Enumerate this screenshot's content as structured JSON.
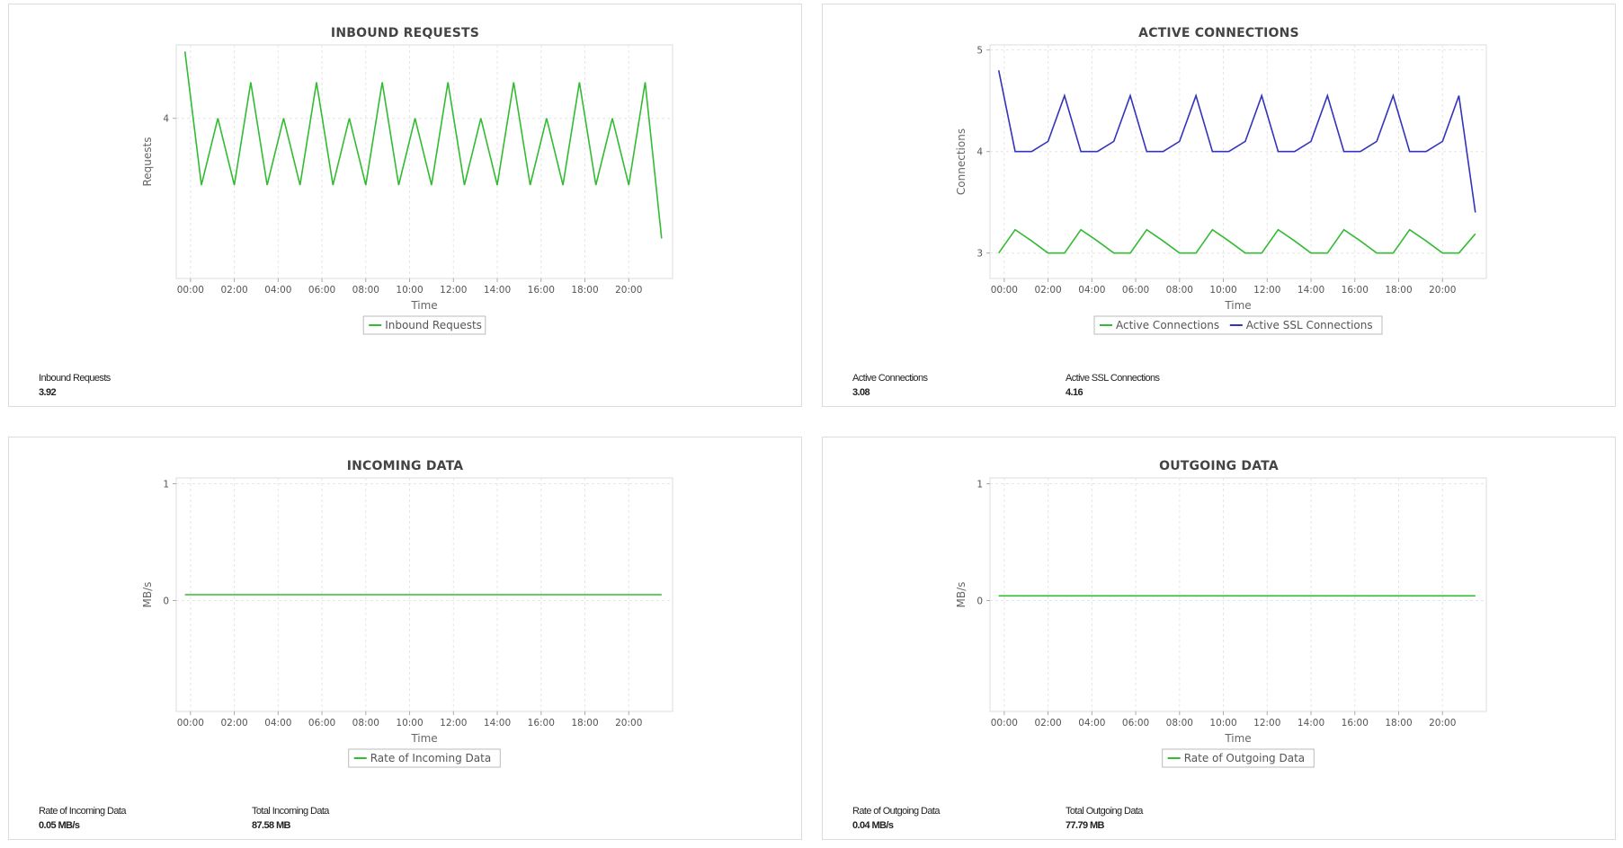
{
  "panels": [
    {
      "id": "inbound-requests",
      "title": "INBOUND REQUESTS",
      "stats": [
        {
          "label": "Inbound Requests",
          "value": "3.92"
        }
      ]
    },
    {
      "id": "active-connections",
      "title": "ACTIVE CONNECTIONS",
      "stats": [
        {
          "label": "Active Connections",
          "value": "3.08"
        },
        {
          "label": "Active SSL Connections",
          "value": "4.16"
        }
      ]
    },
    {
      "id": "incoming-data",
      "title": "INCOMING DATA",
      "stats": [
        {
          "label": "Rate of Incoming Data",
          "value": "0.05 MB/s"
        },
        {
          "label": "Total Incoming Data",
          "value": "87.58 MB"
        }
      ]
    },
    {
      "id": "outgoing-data",
      "title": "OUTGOING DATA",
      "stats": [
        {
          "label": "Rate of Outgoing Data",
          "value": "0.04 MB/s"
        },
        {
          "label": "Total Outgoing Data",
          "value": "77.79 MB"
        }
      ]
    }
  ],
  "chart_data": [
    {
      "type": "line",
      "title": "INBOUND REQUESTS",
      "xlabel": "Time",
      "ylabel": "Requests",
      "x_ticks": [
        "00:00",
        "02:00",
        "04:00",
        "06:00",
        "08:00",
        "10:00",
        "12:00",
        "14:00",
        "16:00",
        "18:00",
        "20:00"
      ],
      "y_ticks": [
        4
      ],
      "ylim": [
        2.8,
        4.55
      ],
      "x_hours": [
        -0.25,
        0.5,
        1.25,
        2.0,
        2.75,
        3.5,
        4.25,
        5.0,
        5.75,
        6.5,
        7.25,
        8.0,
        8.75,
        9.5,
        10.25,
        11.0,
        11.75,
        12.5,
        13.25,
        14.0,
        14.75,
        15.5,
        16.25,
        17.0,
        17.75,
        18.5,
        19.25,
        20.0,
        20.75,
        21.5
      ],
      "x_range": [
        -0.65,
        22.0
      ],
      "legend": "bottom",
      "grid": true,
      "series": [
        {
          "name": "Inbound Requests",
          "color": "#33bb33",
          "values": [
            4.5,
            3.5,
            4.0,
            3.5,
            4.27,
            3.5,
            4.0,
            3.5,
            4.27,
            3.5,
            4.0,
            3.5,
            4.27,
            3.5,
            4.0,
            3.5,
            4.27,
            3.5,
            4.0,
            3.5,
            4.27,
            3.5,
            4.0,
            3.5,
            4.27,
            3.5,
            4.0,
            3.5,
            4.27,
            3.1
          ]
        }
      ]
    },
    {
      "type": "line",
      "title": "ACTIVE CONNECTIONS",
      "xlabel": "Time",
      "ylabel": "Connections",
      "x_ticks": [
        "00:00",
        "02:00",
        "04:00",
        "06:00",
        "08:00",
        "10:00",
        "12:00",
        "14:00",
        "16:00",
        "18:00",
        "20:00"
      ],
      "y_ticks": [
        3,
        4,
        5
      ],
      "ylim": [
        2.75,
        5.05
      ],
      "x_hours": [
        -0.25,
        0.5,
        1.25,
        2.0,
        2.75,
        3.5,
        4.25,
        5.0,
        5.75,
        6.5,
        7.25,
        8.0,
        8.75,
        9.5,
        10.25,
        11.0,
        11.75,
        12.5,
        13.25,
        14.0,
        14.75,
        15.5,
        16.25,
        17.0,
        17.75,
        18.5,
        19.25,
        20.0,
        20.75,
        21.5
      ],
      "x_range": [
        -0.65,
        22.0
      ],
      "legend": "bottom",
      "grid": true,
      "series": [
        {
          "name": "Active Connections",
          "color": "#33bb33",
          "values": [
            3.0,
            3.23,
            3.12,
            3.0,
            3.0,
            3.23,
            3.12,
            3.0,
            3.0,
            3.23,
            3.12,
            3.0,
            3.0,
            3.23,
            3.12,
            3.0,
            3.0,
            3.23,
            3.12,
            3.0,
            3.0,
            3.23,
            3.12,
            3.0,
            3.0,
            3.23,
            3.12,
            3.0,
            3.0,
            3.19
          ]
        },
        {
          "name": "Active SSL Connections",
          "color": "#3333bb",
          "values": [
            4.8,
            4.0,
            4.0,
            4.1,
            4.55,
            4.0,
            4.0,
            4.1,
            4.55,
            4.0,
            4.0,
            4.1,
            4.55,
            4.0,
            4.0,
            4.1,
            4.55,
            4.0,
            4.0,
            4.1,
            4.55,
            4.0,
            4.0,
            4.1,
            4.55,
            4.0,
            4.0,
            4.1,
            4.55,
            3.4
          ]
        }
      ]
    },
    {
      "type": "line",
      "title": "INCOMING DATA",
      "xlabel": "Time",
      "ylabel": "MB/s",
      "x_ticks": [
        "00:00",
        "02:00",
        "04:00",
        "06:00",
        "08:00",
        "10:00",
        "12:00",
        "14:00",
        "16:00",
        "18:00",
        "20:00"
      ],
      "y_ticks": [
        0,
        1
      ],
      "ylim": [
        -0.95,
        1.05
      ],
      "x_hours": [
        -0.25,
        21.5
      ],
      "x_range": [
        -0.65,
        22.0
      ],
      "legend": "bottom",
      "grid": true,
      "series": [
        {
          "name": "Rate of Incoming Data",
          "color": "#33bb33",
          "values": [
            0.05,
            0.05
          ]
        }
      ]
    },
    {
      "type": "line",
      "title": "OUTGOING DATA",
      "xlabel": "Time",
      "ylabel": "MB/s",
      "x_ticks": [
        "00:00",
        "02:00",
        "04:00",
        "06:00",
        "08:00",
        "10:00",
        "12:00",
        "14:00",
        "16:00",
        "18:00",
        "20:00"
      ],
      "y_ticks": [
        0,
        1
      ],
      "ylim": [
        -0.95,
        1.05
      ],
      "x_hours": [
        -0.25,
        21.5
      ],
      "x_range": [
        -0.65,
        22.0
      ],
      "legend": "bottom",
      "grid": true,
      "series": [
        {
          "name": "Rate of Outgoing Data",
          "color": "#33bb33",
          "values": [
            0.04,
            0.04
          ]
        }
      ]
    }
  ]
}
